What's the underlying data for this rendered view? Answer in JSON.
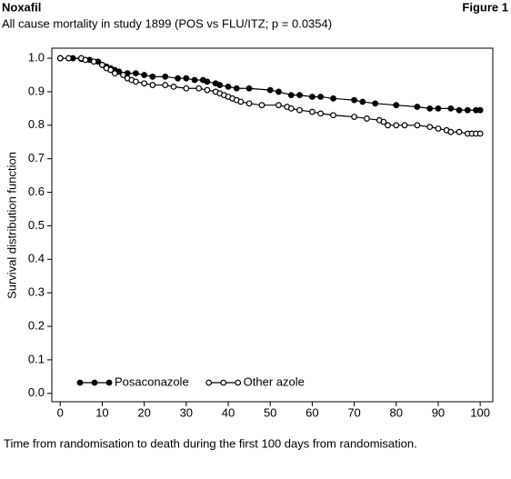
{
  "chart_data": {
    "type": "line",
    "header_left": "Noxafil",
    "header_right": "Figure 1",
    "title": "All cause mortality in study 1899 (POS vs FLU/ITZ; p = 0.0354)",
    "y_label": "Survival distribution function",
    "caption": "Time from randomisation to death during the first 100 days from randomisation.",
    "xlim": [
      -2,
      103
    ],
    "ylim": [
      -0.025,
      1.03
    ],
    "xticks": [
      0,
      10,
      20,
      30,
      40,
      50,
      60,
      70,
      80,
      90,
      100
    ],
    "yticks": [
      {
        "value": 0,
        "label": "0.0"
      },
      0.1,
      0.2,
      0.3,
      0.4,
      0.5,
      0.6,
      0.7,
      0.8,
      0.9,
      {
        "value": 1,
        "label": "1.0"
      }
    ],
    "grid": false,
    "legend": "lower left",
    "series": [
      {
        "name": "Posaconazole",
        "color": "#000000",
        "marker": "filled",
        "x": [
          0,
          3,
          5,
          7,
          9,
          10,
          11,
          12,
          13,
          14,
          16,
          18,
          20,
          22,
          25,
          28,
          30,
          32,
          34,
          35,
          37,
          38,
          40,
          42,
          45,
          50,
          52,
          55,
          57,
          60,
          62,
          65,
          70,
          72,
          75,
          80,
          85,
          88,
          90,
          93,
          95,
          97,
          99,
          100
        ],
        "values": [
          1.0,
          1.0,
          0.998,
          0.995,
          0.99,
          0.98,
          0.975,
          0.97,
          0.965,
          0.96,
          0.955,
          0.955,
          0.95,
          0.945,
          0.945,
          0.94,
          0.94,
          0.935,
          0.935,
          0.93,
          0.925,
          0.92,
          0.915,
          0.91,
          0.91,
          0.905,
          0.9,
          0.89,
          0.89,
          0.885,
          0.885,
          0.88,
          0.875,
          0.87,
          0.865,
          0.86,
          0.855,
          0.85,
          0.85,
          0.85,
          0.845,
          0.845,
          0.845,
          0.845
        ]
      },
      {
        "name": "Other azole",
        "color": "#000000",
        "marker": "open",
        "x": [
          0,
          2,
          5,
          6,
          8,
          10,
          11,
          12,
          13,
          15,
          16,
          17,
          18,
          20,
          22,
          25,
          27,
          30,
          33,
          35,
          37,
          38,
          39,
          40,
          41,
          42,
          43,
          45,
          48,
          52,
          54,
          55,
          57,
          60,
          62,
          65,
          70,
          73,
          76,
          77,
          78,
          80,
          82,
          85,
          88,
          90,
          92,
          93,
          95,
          97,
          98,
          99,
          100
        ],
        "values": [
          1.0,
          1.0,
          1.0,
          0.995,
          0.99,
          0.98,
          0.97,
          0.965,
          0.955,
          0.95,
          0.94,
          0.935,
          0.93,
          0.925,
          0.92,
          0.92,
          0.915,
          0.91,
          0.91,
          0.905,
          0.9,
          0.895,
          0.89,
          0.885,
          0.88,
          0.875,
          0.87,
          0.865,
          0.86,
          0.86,
          0.855,
          0.85,
          0.845,
          0.84,
          0.835,
          0.83,
          0.825,
          0.82,
          0.815,
          0.81,
          0.8,
          0.8,
          0.8,
          0.8,
          0.795,
          0.79,
          0.785,
          0.78,
          0.78,
          0.775,
          0.775,
          0.775,
          0.775
        ]
      }
    ]
  }
}
